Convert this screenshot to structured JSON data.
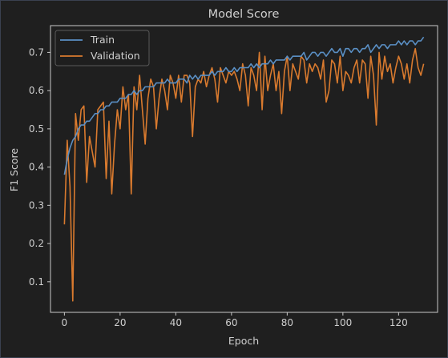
{
  "chart_data": {
    "type": "line",
    "title": "Model Score",
    "xlabel": "Epoch",
    "ylabel": "F1 Score",
    "xlim": [
      -5,
      134
    ],
    "ylim": [
      0.02,
      0.77
    ],
    "xticks": [
      0,
      20,
      40,
      60,
      80,
      100,
      120
    ],
    "yticks": [
      0.1,
      0.2,
      0.3,
      0.4,
      0.5,
      0.6,
      0.7
    ],
    "grid": false,
    "legend_position": "top-left",
    "background": "#1f1f1f",
    "axis_color": "#c8c8c8",
    "series": [
      {
        "name": "Train",
        "color": "#5a8fc4",
        "x": [
          0,
          1,
          2,
          3,
          4,
          5,
          6,
          7,
          8,
          9,
          10,
          11,
          12,
          13,
          14,
          15,
          16,
          17,
          18,
          19,
          20,
          21,
          22,
          23,
          24,
          25,
          26,
          27,
          28,
          29,
          30,
          31,
          32,
          33,
          34,
          35,
          36,
          37,
          38,
          39,
          40,
          41,
          42,
          43,
          44,
          45,
          46,
          47,
          48,
          49,
          50,
          51,
          52,
          53,
          54,
          55,
          56,
          57,
          58,
          59,
          60,
          61,
          62,
          63,
          64,
          65,
          66,
          67,
          68,
          69,
          70,
          71,
          72,
          73,
          74,
          75,
          76,
          77,
          78,
          79,
          80,
          81,
          82,
          83,
          84,
          85,
          86,
          87,
          88,
          89,
          90,
          91,
          92,
          93,
          94,
          95,
          96,
          97,
          98,
          99,
          100,
          101,
          102,
          103,
          104,
          105,
          106,
          107,
          108,
          109,
          110,
          111,
          112,
          113,
          114,
          115,
          116,
          117,
          118,
          119,
          120,
          121,
          122,
          123,
          124,
          125,
          126,
          127,
          128,
          129
        ],
        "values": [
          0.38,
          0.42,
          0.45,
          0.47,
          0.48,
          0.5,
          0.51,
          0.51,
          0.52,
          0.52,
          0.53,
          0.54,
          0.54,
          0.55,
          0.55,
          0.56,
          0.56,
          0.57,
          0.57,
          0.57,
          0.58,
          0.58,
          0.58,
          0.59,
          0.59,
          0.6,
          0.59,
          0.6,
          0.6,
          0.61,
          0.61,
          0.61,
          0.61,
          0.62,
          0.62,
          0.62,
          0.62,
          0.63,
          0.62,
          0.62,
          0.62,
          0.63,
          0.63,
          0.63,
          0.62,
          0.64,
          0.63,
          0.64,
          0.63,
          0.64,
          0.64,
          0.64,
          0.64,
          0.65,
          0.64,
          0.65,
          0.65,
          0.65,
          0.66,
          0.65,
          0.65,
          0.66,
          0.65,
          0.66,
          0.66,
          0.66,
          0.66,
          0.67,
          0.66,
          0.67,
          0.66,
          0.67,
          0.67,
          0.67,
          0.68,
          0.67,
          0.68,
          0.68,
          0.68,
          0.68,
          0.69,
          0.68,
          0.69,
          0.69,
          0.69,
          0.69,
          0.7,
          0.68,
          0.69,
          0.7,
          0.7,
          0.69,
          0.7,
          0.7,
          0.69,
          0.7,
          0.71,
          0.7,
          0.7,
          0.71,
          0.69,
          0.71,
          0.71,
          0.7,
          0.71,
          0.71,
          0.7,
          0.71,
          0.71,
          0.72,
          0.7,
          0.71,
          0.72,
          0.71,
          0.72,
          0.72,
          0.71,
          0.72,
          0.72,
          0.72,
          0.73,
          0.72,
          0.73,
          0.72,
          0.73,
          0.73,
          0.72,
          0.73,
          0.73,
          0.74
        ]
      },
      {
        "name": "Validation",
        "color": "#d97a2e",
        "x": [
          0,
          1,
          2,
          3,
          4,
          5,
          6,
          7,
          8,
          9,
          10,
          11,
          12,
          13,
          14,
          15,
          16,
          17,
          18,
          19,
          20,
          21,
          22,
          23,
          24,
          25,
          26,
          27,
          28,
          29,
          30,
          31,
          32,
          33,
          34,
          35,
          36,
          37,
          38,
          39,
          40,
          41,
          42,
          43,
          44,
          45,
          46,
          47,
          48,
          49,
          50,
          51,
          52,
          53,
          54,
          55,
          56,
          57,
          58,
          59,
          60,
          61,
          62,
          63,
          64,
          65,
          66,
          67,
          68,
          69,
          70,
          71,
          72,
          73,
          74,
          75,
          76,
          77,
          78,
          79,
          80,
          81,
          82,
          83,
          84,
          85,
          86,
          87,
          88,
          89,
          90,
          91,
          92,
          93,
          94,
          95,
          96,
          97,
          98,
          99,
          100,
          101,
          102,
          103,
          104,
          105,
          106,
          107,
          108,
          109,
          110,
          111,
          112,
          113,
          114,
          115,
          116,
          117,
          118,
          119,
          120,
          121,
          122,
          123,
          124,
          125,
          126,
          127,
          128,
          129
        ],
        "values": [
          0.25,
          0.47,
          0.35,
          0.05,
          0.54,
          0.47,
          0.55,
          0.56,
          0.36,
          0.48,
          0.44,
          0.4,
          0.55,
          0.56,
          0.57,
          0.37,
          0.52,
          0.33,
          0.46,
          0.55,
          0.5,
          0.61,
          0.55,
          0.59,
          0.33,
          0.61,
          0.55,
          0.64,
          0.55,
          0.46,
          0.58,
          0.63,
          0.61,
          0.5,
          0.58,
          0.63,
          0.6,
          0.55,
          0.64,
          0.62,
          0.58,
          0.64,
          0.57,
          0.64,
          0.64,
          0.62,
          0.48,
          0.61,
          0.63,
          0.62,
          0.65,
          0.61,
          0.64,
          0.66,
          0.63,
          0.57,
          0.66,
          0.64,
          0.62,
          0.65,
          0.64,
          0.65,
          0.63,
          0.6,
          0.67,
          0.64,
          0.56,
          0.66,
          0.64,
          0.6,
          0.7,
          0.55,
          0.69,
          0.6,
          0.64,
          0.67,
          0.6,
          0.65,
          0.54,
          0.65,
          0.69,
          0.6,
          0.67,
          0.65,
          0.63,
          0.69,
          0.68,
          0.62,
          0.67,
          0.65,
          0.67,
          0.66,
          0.63,
          0.68,
          0.57,
          0.6,
          0.68,
          0.67,
          0.62,
          0.69,
          0.6,
          0.65,
          0.64,
          0.62,
          0.66,
          0.68,
          0.62,
          0.68,
          0.67,
          0.58,
          0.69,
          0.64,
          0.51,
          0.7,
          0.63,
          0.69,
          0.65,
          0.67,
          0.62,
          0.66,
          0.69,
          0.67,
          0.63,
          0.67,
          0.62,
          0.68,
          0.71,
          0.66,
          0.64,
          0.67
        ]
      }
    ]
  }
}
